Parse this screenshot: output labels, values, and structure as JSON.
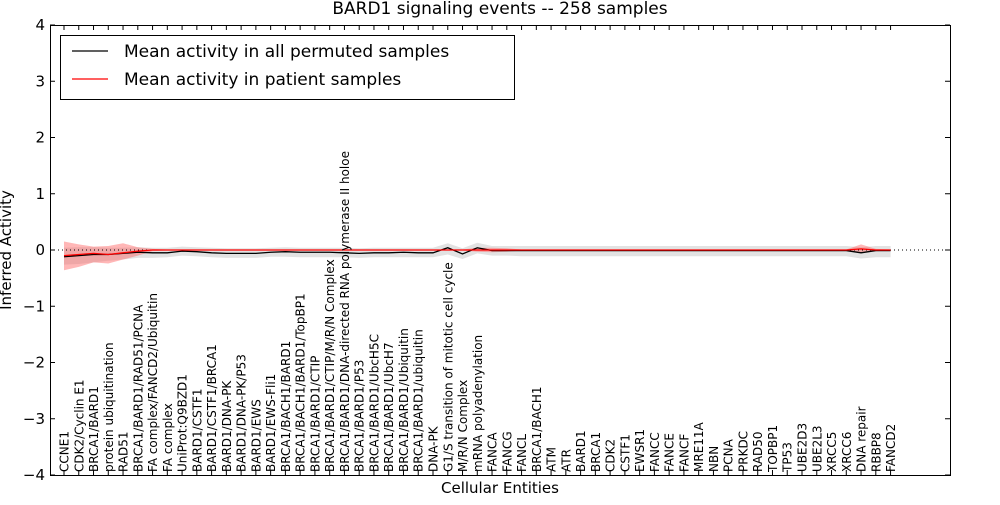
{
  "chart_data": {
    "type": "line",
    "title": "BARD1 signaling events -- 258 samples",
    "xlabel": "Cellular Entities",
    "ylabel": "Inferred Activity",
    "ylim": [
      -4,
      4
    ],
    "yticks": [
      -4,
      -3,
      -2,
      -1,
      0,
      1,
      2,
      3,
      4
    ],
    "ytick_labels": [
      "−4",
      "−3",
      "−2",
      "−1",
      "0",
      "1",
      "2",
      "3",
      "4"
    ],
    "grid": false,
    "legend_position": "top-left",
    "categories": [
      "CCNE1",
      "CDK2/Cyclin E1",
      "BRCA1/BARD1",
      "protein ubiquitination",
      "RAD51",
      "BRCA1/BARD1/RAD51/PCNA",
      "FA complex/FANCD2/Ubiquitin",
      "FA complex",
      "UniProt:Q9BZD1",
      "BARD1/CSTF1",
      "BARD1/CSTF1/BRCA1",
      "BARD1/DNA-PK",
      "BARD1/DNA-PK/P53",
      "BARD1/EWS",
      "BARD1/EWS-Fli1",
      "BRCA1/BACH1/BARD1",
      "BRCA1/BACH1/BARD1/TopBP1",
      "BRCA1/BARD1/CTIP",
      "BRCA1/BARD1/CTIP/M/R/N Complex",
      "BRCA1/BARD1/DNA-directed RNA polymerase II holoe",
      "BRCA1/BARD1/P53",
      "BRCA1/BARD1/UbcH5C",
      "BRCA1/BARD1/UbcH7",
      "BRCA1/BARD1/Ubiquitin",
      "BRCA1/BARD1/ubiquitin",
      "DNA-PK",
      "G1/S transition of mitotic cell cycle",
      "M/R/N Complex",
      "mRNA polyadenylation",
      "FANCA",
      "FANCG",
      "FANCL",
      "BRCA1/BACH1",
      "ATM",
      "ATR",
      "BARD1",
      "BRCA1",
      "CDK2",
      "CSTF1",
      "EWSR1",
      "FANCC",
      "FANCE",
      "FANCF",
      "MRE11A",
      "NBN",
      "PCNA",
      "PRKDC",
      "RAD50",
      "TOPBP1",
      "TP53",
      "UBE2D3",
      "UBE2L3",
      "XRCC5",
      "XRCC6",
      "DNA repair",
      "RBBP8",
      "FANCD2"
    ],
    "series": [
      {
        "name": "Mean activity in all permuted samples",
        "color": "#000000",
        "values": [
          -0.12,
          -0.1,
          -0.08,
          -0.08,
          -0.06,
          -0.04,
          -0.05,
          -0.05,
          -0.02,
          -0.03,
          -0.05,
          -0.06,
          -0.06,
          -0.06,
          -0.04,
          -0.03,
          -0.04,
          -0.04,
          -0.04,
          -0.05,
          -0.06,
          -0.05,
          -0.05,
          -0.04,
          -0.05,
          -0.05,
          0.04,
          -0.07,
          0.04,
          -0.01,
          -0.01,
          -0.01,
          -0.01,
          -0.01,
          -0.01,
          -0.01,
          -0.01,
          -0.01,
          -0.01,
          -0.01,
          -0.01,
          -0.01,
          -0.01,
          -0.01,
          -0.01,
          -0.01,
          -0.01,
          -0.01,
          -0.01,
          -0.01,
          -0.01,
          -0.01,
          -0.01,
          -0.01,
          -0.05,
          -0.01,
          -0.01
        ],
        "band_lower": [
          -0.26,
          -0.25,
          -0.22,
          -0.19,
          -0.17,
          -0.14,
          -0.14,
          -0.13,
          -0.1,
          -0.11,
          -0.13,
          -0.14,
          -0.14,
          -0.14,
          -0.12,
          -0.12,
          -0.13,
          -0.13,
          -0.13,
          -0.13,
          -0.14,
          -0.13,
          -0.13,
          -0.13,
          -0.13,
          -0.13,
          -0.08,
          -0.16,
          -0.06,
          -0.1,
          -0.1,
          -0.11,
          -0.11,
          -0.11,
          -0.11,
          -0.11,
          -0.11,
          -0.11,
          -0.11,
          -0.11,
          -0.11,
          -0.11,
          -0.11,
          -0.11,
          -0.11,
          -0.11,
          -0.11,
          -0.11,
          -0.11,
          -0.11,
          -0.11,
          -0.11,
          -0.11,
          -0.11,
          -0.15,
          -0.13,
          -0.13
        ],
        "band_upper": [
          0.04,
          0.05,
          0.05,
          0.04,
          0.04,
          0.05,
          0.04,
          0.04,
          0.06,
          0.05,
          0.04,
          0.03,
          0.03,
          0.03,
          0.04,
          0.05,
          0.04,
          0.04,
          0.04,
          0.04,
          0.03,
          0.04,
          0.04,
          0.04,
          0.04,
          0.04,
          0.12,
          0.03,
          0.13,
          0.07,
          0.07,
          0.07,
          0.07,
          0.07,
          0.07,
          0.07,
          0.07,
          0.07,
          0.07,
          0.07,
          0.07,
          0.07,
          0.07,
          0.07,
          0.07,
          0.07,
          0.07,
          0.07,
          0.07,
          0.07,
          0.07,
          0.07,
          0.07,
          0.07,
          0.05,
          0.07,
          0.07
        ],
        "band_color": "#a0a0a0"
      },
      {
        "name": "Mean activity in patient samples",
        "color": "#ff0000",
        "values": [
          -0.1,
          -0.08,
          -0.06,
          -0.08,
          -0.05,
          -0.02,
          0.0,
          0.0,
          0.0,
          0.0,
          0.0,
          0.0,
          0.0,
          0.0,
          0.0,
          0.0,
          0.0,
          0.0,
          0.0,
          0.0,
          0.0,
          0.0,
          0.0,
          0.0,
          0.0,
          0.0,
          0.0,
          0.0,
          0.0,
          0.0,
          0.0,
          0.0,
          0.0,
          0.0,
          0.0,
          0.0,
          0.0,
          0.0,
          0.0,
          0.0,
          0.0,
          0.0,
          0.0,
          0.0,
          0.0,
          0.0,
          0.0,
          0.0,
          0.0,
          0.0,
          0.0,
          0.0,
          0.0,
          0.0,
          0.02,
          0.0,
          0.0
        ],
        "band_lower": [
          -0.36,
          -0.3,
          -0.22,
          -0.24,
          -0.17,
          -0.1,
          -0.02,
          -0.01,
          -0.01,
          -0.01,
          -0.01,
          -0.01,
          -0.01,
          -0.01,
          -0.01,
          -0.01,
          -0.01,
          -0.01,
          -0.01,
          -0.01,
          -0.01,
          -0.01,
          -0.01,
          -0.01,
          -0.01,
          -0.01,
          -0.01,
          -0.01,
          -0.03,
          -0.04,
          -0.03,
          -0.01,
          -0.01,
          -0.01,
          -0.01,
          -0.01,
          -0.01,
          -0.01,
          -0.01,
          -0.01,
          -0.01,
          -0.01,
          -0.01,
          -0.01,
          -0.01,
          -0.01,
          -0.01,
          -0.01,
          -0.01,
          -0.01,
          -0.01,
          -0.01,
          -0.01,
          -0.01,
          -0.04,
          -0.02,
          -0.01
        ],
        "band_upper": [
          0.15,
          0.1,
          0.06,
          0.07,
          0.12,
          0.05,
          0.02,
          0.01,
          0.01,
          0.01,
          0.01,
          0.01,
          0.01,
          0.01,
          0.01,
          0.01,
          0.01,
          0.01,
          0.01,
          0.01,
          0.01,
          0.01,
          0.01,
          0.01,
          0.01,
          0.01,
          0.01,
          0.01,
          0.04,
          0.04,
          0.03,
          0.01,
          0.01,
          0.01,
          0.01,
          0.01,
          0.01,
          0.01,
          0.01,
          0.01,
          0.01,
          0.01,
          0.01,
          0.01,
          0.01,
          0.01,
          0.01,
          0.01,
          0.01,
          0.01,
          0.01,
          0.01,
          0.01,
          0.01,
          0.1,
          0.02,
          0.01
        ],
        "band_color": "#ff6060"
      }
    ]
  }
}
